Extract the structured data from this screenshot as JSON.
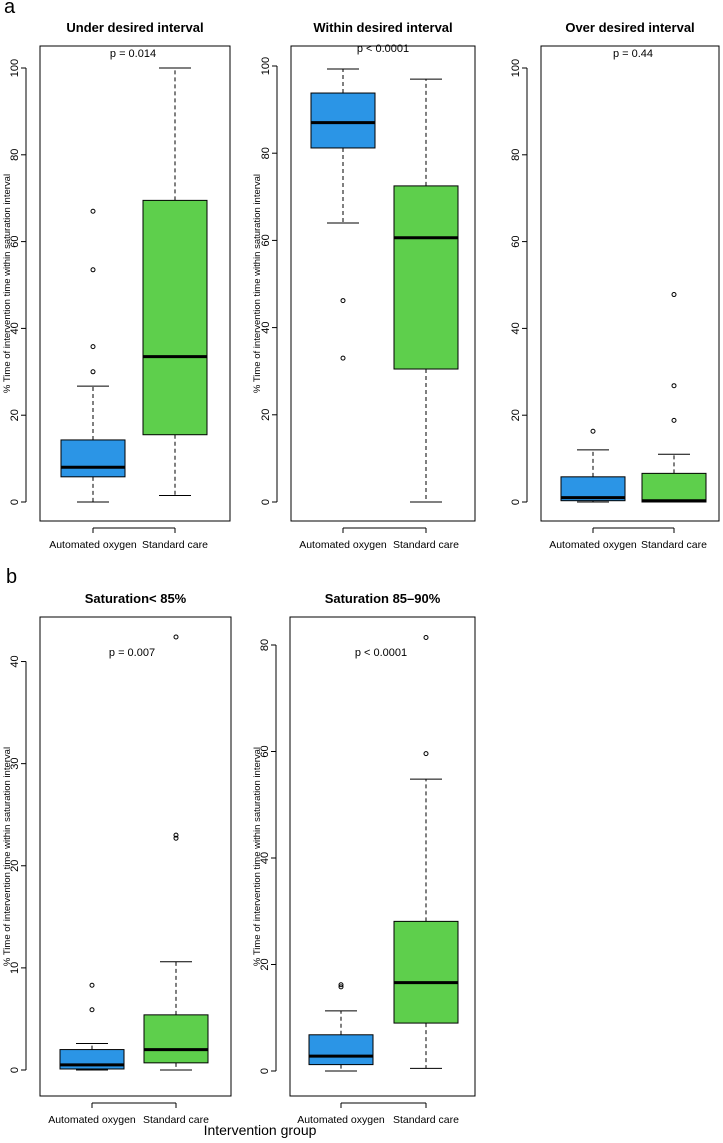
{
  "figure": {
    "panel_letters": [
      "a",
      "b"
    ],
    "global_xlabel": "Intervention group"
  },
  "chart_data": [
    {
      "type": "boxplot",
      "panel": "a",
      "title": "Under desired interval",
      "ylabel": "% Time of intervention time within saturation interval",
      "ylim": [
        0,
        100
      ],
      "yticks": [
        0,
        20,
        40,
        60,
        80,
        100
      ],
      "annotation": "p = 0.014",
      "categories": [
        "Automated oxygen",
        "Standard care"
      ],
      "boxes": [
        {
          "name": "Automated oxygen",
          "color": "#2b95e6",
          "whisker_low": 0,
          "q1": 5.8,
          "median": 8,
          "q3": 14.3,
          "whisker_high": 26.7,
          "outliers": [
            30,
            35.8,
            53.5,
            67
          ]
        },
        {
          "name": "Standard care",
          "color": "#5ecf4c",
          "whisker_low": 1.5,
          "q1": 15.5,
          "median": 33.5,
          "q3": 69.5,
          "whisker_high": 100,
          "outliers": []
        }
      ]
    },
    {
      "type": "boxplot",
      "panel": "a",
      "title": "Within desired interval",
      "ylabel": "% Time of intervention time within saturation interval",
      "ylim": [
        0,
        100
      ],
      "yticks": [
        0,
        20,
        40,
        60,
        80,
        100
      ],
      "annotation": "p < 0.0001",
      "categories": [
        "Automated oxygen",
        "Standard care"
      ],
      "boxes": [
        {
          "name": "Automated oxygen",
          "color": "#2b95e6",
          "whisker_low": 64,
          "q1": 81.2,
          "median": 87,
          "q3": 93.8,
          "whisker_high": 99.3,
          "outliers": [
            46.2,
            33
          ]
        },
        {
          "name": "Standard care",
          "color": "#5ecf4c",
          "whisker_low": 0,
          "q1": 30.5,
          "median": 60.6,
          "q3": 72.5,
          "whisker_high": 97,
          "outliers": []
        }
      ]
    },
    {
      "type": "boxplot",
      "panel": "a",
      "title": "Over desired interval",
      "ylabel": "",
      "ylim": [
        0,
        100
      ],
      "yticks": [
        0,
        20,
        40,
        60,
        80,
        100
      ],
      "annotation": "p = 0.44",
      "categories": [
        "Automated oxygen",
        "Standard care"
      ],
      "boxes": [
        {
          "name": "Automated oxygen",
          "color": "#2b95e6",
          "whisker_low": 0,
          "q1": 0.3,
          "median": 1,
          "q3": 5.8,
          "whisker_high": 12,
          "outliers": [
            16.3
          ]
        },
        {
          "name": "Standard care",
          "color": "#5ecf4c",
          "whisker_low": 0,
          "q1": 0,
          "median": 0.3,
          "q3": 6.6,
          "whisker_high": 11,
          "outliers": [
            18.8,
            26.8,
            47.8
          ]
        }
      ]
    },
    {
      "type": "boxplot",
      "panel": "b",
      "title": "Saturation< 85%",
      "ylabel": "% Time of intervention time within saturation interval",
      "ylim": [
        0,
        42.5
      ],
      "yticks": [
        0,
        10,
        20,
        30,
        40
      ],
      "annotation": "p = 0.007",
      "categories": [
        "Automated oxygen",
        "Standard care"
      ],
      "boxes": [
        {
          "name": "Automated oxygen",
          "color": "#2b95e6",
          "whisker_low": 0,
          "q1": 0.1,
          "median": 0.5,
          "q3": 2,
          "whisker_high": 2.6,
          "outliers": [
            5.9,
            8.3
          ]
        },
        {
          "name": "Standard care",
          "color": "#5ecf4c",
          "whisker_low": 0,
          "q1": 0.7,
          "median": 2,
          "q3": 5.4,
          "whisker_high": 10.6,
          "outliers": [
            22.7,
            23,
            42.4
          ]
        }
      ]
    },
    {
      "type": "boxplot",
      "panel": "b",
      "title": "Saturation 85–90%",
      "ylabel": "% Time of intervention time within saturation interval",
      "ylim": [
        0,
        81.5
      ],
      "yticks": [
        0,
        20,
        40,
        60,
        80
      ],
      "annotation": "p < 0.0001",
      "categories": [
        "Automated oxygen",
        "Standard care"
      ],
      "boxes": [
        {
          "name": "Automated oxygen",
          "color": "#2b95e6",
          "whisker_low": 0,
          "q1": 1.2,
          "median": 2.8,
          "q3": 6.8,
          "whisker_high": 11.3,
          "outliers": [
            15.8,
            16.2
          ]
        },
        {
          "name": "Standard care",
          "color": "#5ecf4c",
          "whisker_low": 0.5,
          "q1": 9,
          "median": 16.6,
          "q3": 28.1,
          "whisker_high": 54.8,
          "outliers": [
            59.6,
            81.4
          ]
        }
      ]
    }
  ]
}
